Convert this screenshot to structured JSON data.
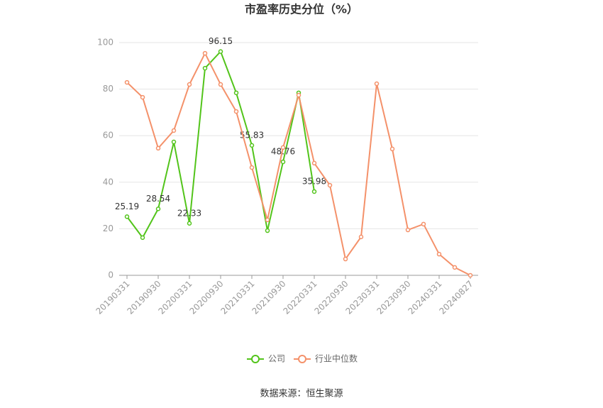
{
  "chart_data": {
    "type": "line",
    "title": "市盈率历史分位（%）",
    "source": "数据来源：恒生聚源",
    "categories": [
      "20190331",
      null,
      "20190930",
      null,
      "20200331",
      null,
      "20200930",
      null,
      "20210331",
      null,
      "20210930",
      null,
      "20220331",
      null,
      "20220930",
      null,
      "20230331",
      null,
      "20230930",
      null,
      "20240331",
      null,
      "20240827"
    ],
    "series": [
      {
        "name": "公司",
        "color": "#52c41a",
        "values": [
          25.19,
          16.2,
          28.54,
          57.3,
          22.33,
          89.0,
          96.15,
          78.4,
          55.83,
          19.2,
          48.76,
          78.4,
          35.98,
          null,
          null,
          null,
          null,
          null,
          null,
          null,
          null,
          null,
          null
        ],
        "value_labels": [
          "25.19",
          null,
          "28.54",
          null,
          "22.33",
          null,
          "96.15",
          null,
          "55.83",
          null,
          "48.76",
          null,
          "35.98",
          null,
          null,
          null,
          null,
          null,
          null,
          null,
          null,
          null,
          null
        ]
      },
      {
        "name": "行业中位数",
        "color": "#f4916a",
        "values": [
          82.9,
          76.5,
          54.6,
          62.2,
          82.0,
          95.4,
          82.0,
          70.4,
          46.3,
          23.8,
          54.9,
          77.4,
          48.2,
          38.7,
          7.0,
          16.5,
          82.3,
          54.3,
          19.5,
          22.0,
          9.1,
          3.4,
          0
        ]
      }
    ],
    "ylim": [
      0,
      100
    ],
    "yticks": [
      0,
      20,
      40,
      60,
      80,
      100
    ],
    "grid": true
  }
}
